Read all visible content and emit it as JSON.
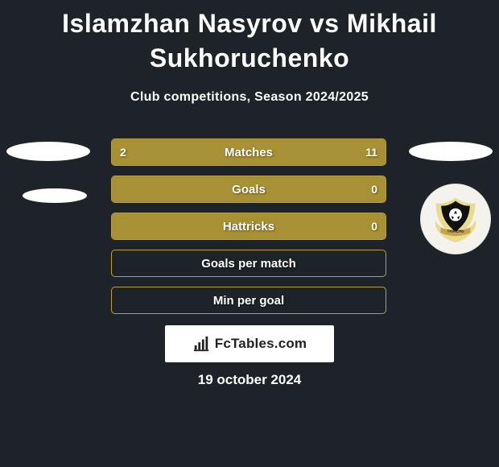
{
  "title": "Islamzhan Nasyrov vs Mikhail Sukhoruchenko",
  "subtitle": "Club competitions, Season 2024/2025",
  "brand": "FcTables.com",
  "date": "19 october 2024",
  "colors": {
    "background": "#1e2329",
    "brand_bg": "#ffffff",
    "brand_text": "#222222"
  },
  "team_logo": {
    "banner_text": "ТЮМЕНЬ",
    "circle_bg": "#f4f2ec",
    "wing_color": "#e8dc8f",
    "shield_color": "#10100f",
    "banner_color": "#c6a24b",
    "ball_color": "#ffffff"
  },
  "bars": [
    {
      "label": "Matches",
      "left": "2",
      "right": "11",
      "left_pct": 15.4,
      "right_pct": 84.6,
      "fill_color": "#a79134",
      "border_color": "#b8a03e"
    },
    {
      "label": "Goals",
      "left": "",
      "right": "0",
      "left_pct": 0,
      "right_pct": 100,
      "fill_color": "#a79134",
      "border_color": "#b8a03e"
    },
    {
      "label": "Hattricks",
      "left": "",
      "right": "0",
      "left_pct": 0,
      "right_pct": 100,
      "fill_color": "#a79134",
      "border_color": "#b8a03e"
    },
    {
      "label": "Goals per match",
      "left": "",
      "right": "",
      "left_pct": 0,
      "right_pct": 0,
      "fill_color": "#a79134",
      "border_color": "#b8a03e"
    },
    {
      "label": "Min per goal",
      "left": "",
      "right": "",
      "left_pct": 0,
      "right_pct": 0,
      "fill_color": "#a79134",
      "border_color": "#b8a03e"
    }
  ]
}
